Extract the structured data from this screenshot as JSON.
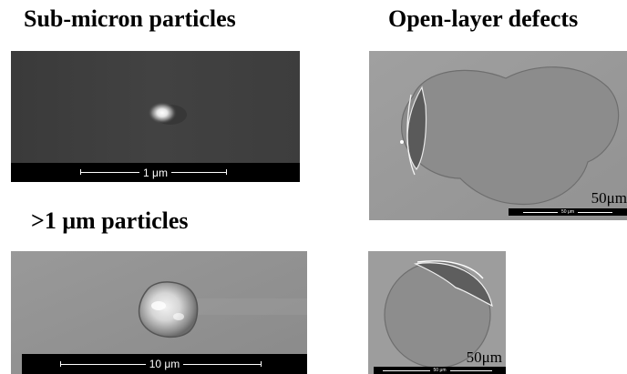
{
  "headings": {
    "submicron": "Sub-micron particles",
    "openlayer": "Open-layer defects",
    "large": ">1 μm particles"
  },
  "panels": {
    "submicron_scale": "1 μm",
    "large_scale": "10 μm",
    "openlayer1_scale_text": "50μm",
    "openlayer1_bar_label": "50 μm",
    "openlayer2_scale_text": "50μm",
    "openlayer2_bar_label": "50 μm"
  }
}
